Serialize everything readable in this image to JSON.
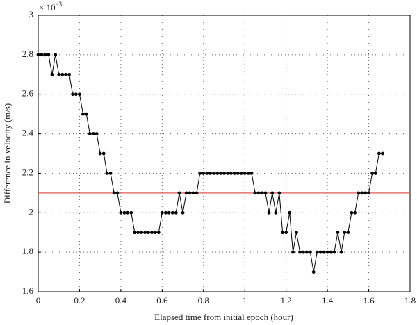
{
  "chart_data": {
    "type": "line",
    "x_label": "Elapsed time from initial epoch (hour)",
    "y_label": "Difference in velocity (m/s)",
    "y_multiplier": {
      "base": "× 10",
      "exponent": "−3"
    },
    "x": [
      0,
      0.017,
      0.033,
      0.05,
      0.067,
      0.083,
      0.1,
      0.117,
      0.133,
      0.15,
      0.167,
      0.183,
      0.2,
      0.217,
      0.233,
      0.25,
      0.267,
      0.283,
      0.3,
      0.317,
      0.333,
      0.35,
      0.367,
      0.383,
      0.4,
      0.417,
      0.433,
      0.45,
      0.467,
      0.483,
      0.5,
      0.517,
      0.533,
      0.55,
      0.567,
      0.583,
      0.6,
      0.617,
      0.633,
      0.65,
      0.667,
      0.683,
      0.7,
      0.717,
      0.733,
      0.75,
      0.767,
      0.783,
      0.8,
      0.817,
      0.833,
      0.85,
      0.867,
      0.883,
      0.9,
      0.917,
      0.933,
      0.95,
      0.967,
      0.983,
      1,
      1.017,
      1.033,
      1.05,
      1.067,
      1.083,
      1.1,
      1.117,
      1.133,
      1.15,
      1.167,
      1.183,
      1.2,
      1.217,
      1.233,
      1.25,
      1.267,
      1.283,
      1.3,
      1.317,
      1.333,
      1.35,
      1.367,
      1.383,
      1.4,
      1.417,
      1.433,
      1.45,
      1.467,
      1.483,
      1.5,
      1.517,
      1.533,
      1.55,
      1.567,
      1.583,
      1.6,
      1.617,
      1.633,
      1.65,
      1.667
    ],
    "values": [
      2.8,
      2.8,
      2.8,
      2.8,
      2.7,
      2.8,
      2.7,
      2.7,
      2.7,
      2.7,
      2.6,
      2.6,
      2.6,
      2.5,
      2.5,
      2.4,
      2.4,
      2.4,
      2.3,
      2.3,
      2.2,
      2.2,
      2.1,
      2.1,
      2.0,
      2.0,
      2.0,
      2.0,
      1.9,
      1.9,
      1.9,
      1.9,
      1.9,
      1.9,
      1.9,
      1.9,
      2.0,
      2.0,
      2.0,
      2.0,
      2.0,
      2.1,
      2.0,
      2.1,
      2.1,
      2.1,
      2.1,
      2.2,
      2.2,
      2.2,
      2.2,
      2.2,
      2.2,
      2.2,
      2.2,
      2.2,
      2.2,
      2.2,
      2.2,
      2.2,
      2.2,
      2.2,
      2.2,
      2.1,
      2.1,
      2.1,
      2.1,
      2.0,
      2.1,
      2.0,
      2.1,
      1.9,
      1.9,
      2.0,
      1.8,
      1.9,
      1.8,
      1.8,
      1.8,
      1.8,
      1.7,
      1.8,
      1.8,
      1.8,
      1.8,
      1.8,
      1.8,
      1.9,
      1.8,
      1.9,
      1.9,
      2.0,
      2.0,
      2.1,
      2.1,
      2.1,
      2.1,
      2.2,
      2.2,
      2.3,
      2.3
    ],
    "color": "#000000",
    "reference_line": {
      "value": 2.1,
      "color": "#e05a5a"
    },
    "xlim": [
      0,
      1.8
    ],
    "xticks": [
      0,
      0.2,
      0.4,
      0.6,
      0.8,
      1,
      1.2,
      1.4,
      1.6,
      1.8
    ],
    "ylim": [
      1.6,
      3
    ],
    "yticks": [
      1.6,
      1.8,
      2,
      2.2,
      2.4,
      2.6,
      2.8,
      3
    ],
    "grid": true
  }
}
